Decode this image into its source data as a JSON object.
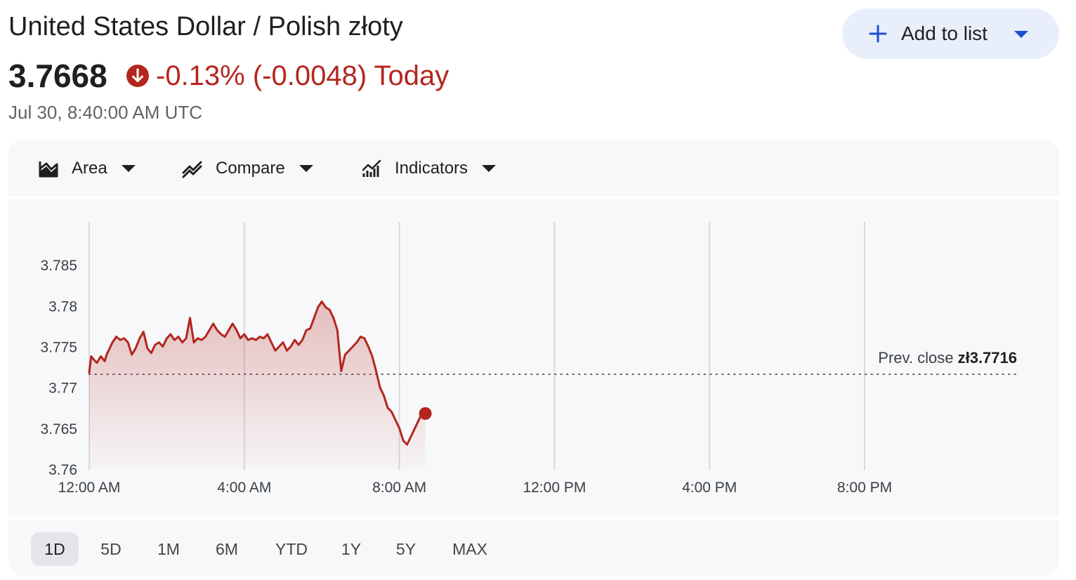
{
  "header": {
    "title": "United States Dollar / Polish złoty",
    "add_to_list_label": "Add to list",
    "price": "3.7668",
    "change": "-0.13% (-0.0048) Today",
    "timestamp": "Jul 30, 8:40:00 AM UTC"
  },
  "toolbar": {
    "area_label": "Area",
    "compare_label": "Compare",
    "indicators_label": "Indicators"
  },
  "ranges": [
    "1D",
    "5D",
    "1M",
    "6M",
    "YTD",
    "1Y",
    "5Y",
    "MAX"
  ],
  "active_range": "1D",
  "colors": {
    "line": "#b3261e",
    "add_button_bg": "#e9eefb",
    "accent_blue": "#1a4fd6"
  },
  "chart_data": {
    "type": "area",
    "y_ticks": [
      "3.785",
      "3.78",
      "3.775",
      "3.77",
      "3.765",
      "3.76"
    ],
    "y_tick_values": [
      3.785,
      3.78,
      3.775,
      3.77,
      3.765,
      3.76
    ],
    "ylim": [
      3.76,
      3.7875
    ],
    "x_ticks": [
      "12:00 AM",
      "4:00 AM",
      "8:00 AM",
      "12:00 PM",
      "4:00 PM",
      "8:00 PM"
    ],
    "x_tick_hours": [
      0,
      4,
      8,
      12,
      16,
      20
    ],
    "xlim_hours": [
      0,
      24
    ],
    "prev_close_prefix": "Prev. close",
    "prev_close_label": "zł3.7716",
    "prev_close_value": 3.7716,
    "series": [
      {
        "x_hours": [
          0.0,
          0.05,
          0.1,
          0.2,
          0.3,
          0.4,
          0.45,
          0.5,
          0.6,
          0.7,
          0.8,
          0.9,
          1.0,
          1.1,
          1.2,
          1.3,
          1.4,
          1.5,
          1.6,
          1.7,
          1.8,
          1.9,
          2.0,
          2.1,
          2.2,
          2.3,
          2.4,
          2.5,
          2.6,
          2.7,
          2.8,
          2.9,
          3.0,
          3.1,
          3.2,
          3.3,
          3.4,
          3.5,
          3.6,
          3.7,
          3.8,
          3.9,
          4.0,
          4.1,
          4.2,
          4.3,
          4.4,
          4.5,
          4.6,
          4.7,
          4.8,
          4.9,
          5.0,
          5.1,
          5.2,
          5.3,
          5.4,
          5.5,
          5.6,
          5.7,
          5.8,
          5.9,
          6.0,
          6.1,
          6.2,
          6.3,
          6.4,
          6.5,
          6.6,
          6.7,
          6.8,
          6.9,
          7.0,
          7.1,
          7.2,
          7.3,
          7.4,
          7.5,
          7.6,
          7.7,
          7.8,
          7.9,
          8.0,
          8.1,
          8.2,
          8.3,
          8.4,
          8.5,
          8.55,
          8.6,
          8.67
        ],
        "values": [
          3.7718,
          3.7738,
          3.7735,
          3.773,
          3.7738,
          3.7732,
          3.774,
          3.7745,
          3.7755,
          3.7762,
          3.7758,
          3.776,
          3.7755,
          3.774,
          3.7748,
          3.776,
          3.7768,
          3.7748,
          3.7742,
          3.7752,
          3.7755,
          3.775,
          3.776,
          3.7765,
          3.7758,
          3.7762,
          3.7755,
          3.776,
          3.7785,
          3.7755,
          3.776,
          3.7758,
          3.7762,
          3.777,
          3.7778,
          3.777,
          3.7765,
          3.7762,
          3.777,
          3.7778,
          3.777,
          3.776,
          3.7765,
          3.7758,
          3.776,
          3.7758,
          3.7762,
          3.776,
          3.7765,
          3.7755,
          3.7745,
          3.775,
          3.7755,
          3.7745,
          3.775,
          3.7758,
          3.7752,
          3.7758,
          3.777,
          3.7772,
          3.7785,
          3.7798,
          3.7805,
          3.7798,
          3.7795,
          3.7785,
          3.777,
          3.772,
          3.774,
          3.7745,
          3.775,
          3.7755,
          3.7762,
          3.776,
          3.775,
          3.7738,
          3.772,
          3.77,
          3.769,
          3.7675,
          3.767,
          3.766,
          3.765,
          3.7635,
          3.763,
          3.764,
          3.765,
          3.766,
          3.7665,
          3.7668,
          3.7668
        ]
      }
    ],
    "grid": true
  }
}
